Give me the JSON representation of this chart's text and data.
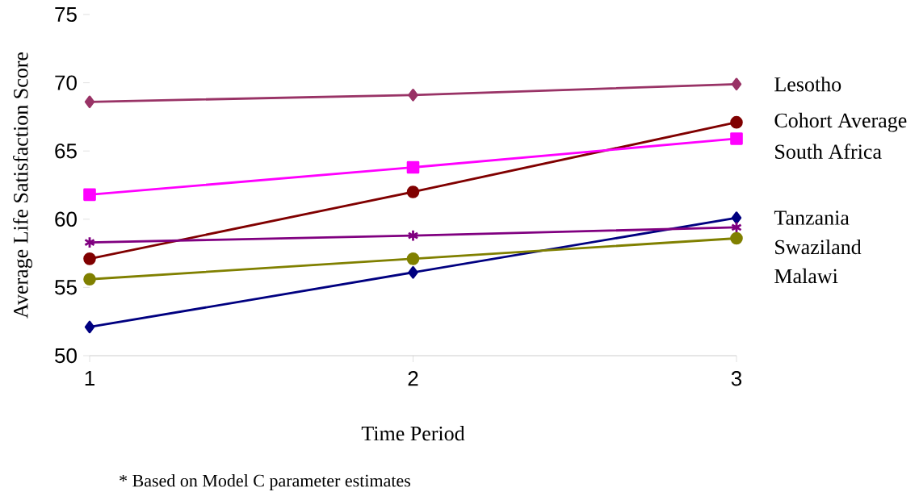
{
  "chart_data": {
    "type": "line",
    "xlabel": "Time Period",
    "ylabel": "Average Life Satisfaction Score",
    "x": [
      1,
      2,
      3
    ],
    "xlim": [
      1,
      3
    ],
    "xticks": [
      1,
      2,
      3
    ],
    "ylim": [
      50,
      75
    ],
    "yticks": [
      50,
      55,
      60,
      65,
      70,
      75
    ],
    "grid": false,
    "series": [
      {
        "name": "Lesotho",
        "color": "#993366",
        "marker": "diamond",
        "values": [
          68.6,
          69.1,
          69.9
        ]
      },
      {
        "name": "Cohort Average",
        "color": "#800000",
        "marker": "circle",
        "values": [
          57.1,
          62.0,
          67.1
        ]
      },
      {
        "name": "South Africa",
        "color": "#ff00ff",
        "marker": "square",
        "values": [
          61.8,
          63.8,
          65.9
        ]
      },
      {
        "name": "Tanzania",
        "color": "#000080",
        "marker": "diamond",
        "values": [
          52.1,
          56.1,
          60.1
        ]
      },
      {
        "name": "Swaziland",
        "color": "#800080",
        "marker": "cross",
        "values": [
          58.3,
          58.8,
          59.4
        ]
      },
      {
        "name": "Malawi",
        "color": "#808000",
        "marker": "circle",
        "values": [
          55.6,
          57.1,
          58.6
        ]
      }
    ],
    "annotations": [
      "* Based on Model C parameter estimates"
    ]
  }
}
